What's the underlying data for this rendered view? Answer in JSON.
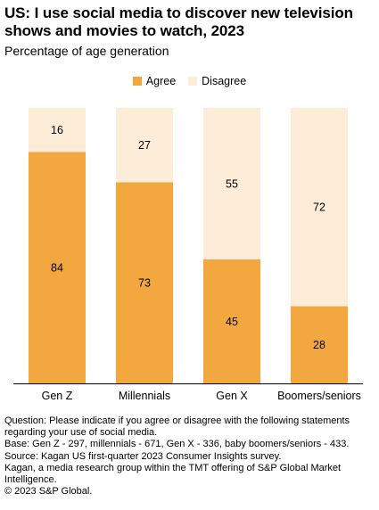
{
  "title": "US: I use social media to discover new television shows and movies to watch, 2023",
  "subtitle": "Percentage of age generation",
  "colors": {
    "agree": "#f2a73f",
    "disagree": "#fdedd8",
    "axis": "#000000"
  },
  "chart_data": {
    "type": "bar",
    "stacked": true,
    "categories": [
      "Gen Z",
      "Millennials",
      "Gen X",
      "Boomers/seniors"
    ],
    "series": [
      {
        "name": "Agree",
        "values": [
          84,
          73,
          45,
          28
        ]
      },
      {
        "name": "Disagree",
        "values": [
          16,
          27,
          55,
          72
        ]
      }
    ],
    "ylim": [
      0,
      100
    ],
    "legend": "top-center",
    "grid": false
  },
  "notes": [
    "Question: Please indicate if you agree or disagree with the following statements regarding your use of social media.",
    "Base: Gen Z - 297, millennials - 671, Gen X - 336, baby boomers/seniors - 433.",
    "Source: Kagan US first-quarter 2023 Consumer Insights survey.",
    "Kagan, a media research group within the TMT offering of S&P Global Market Intelligence.",
    "© 2023 S&P Global."
  ]
}
